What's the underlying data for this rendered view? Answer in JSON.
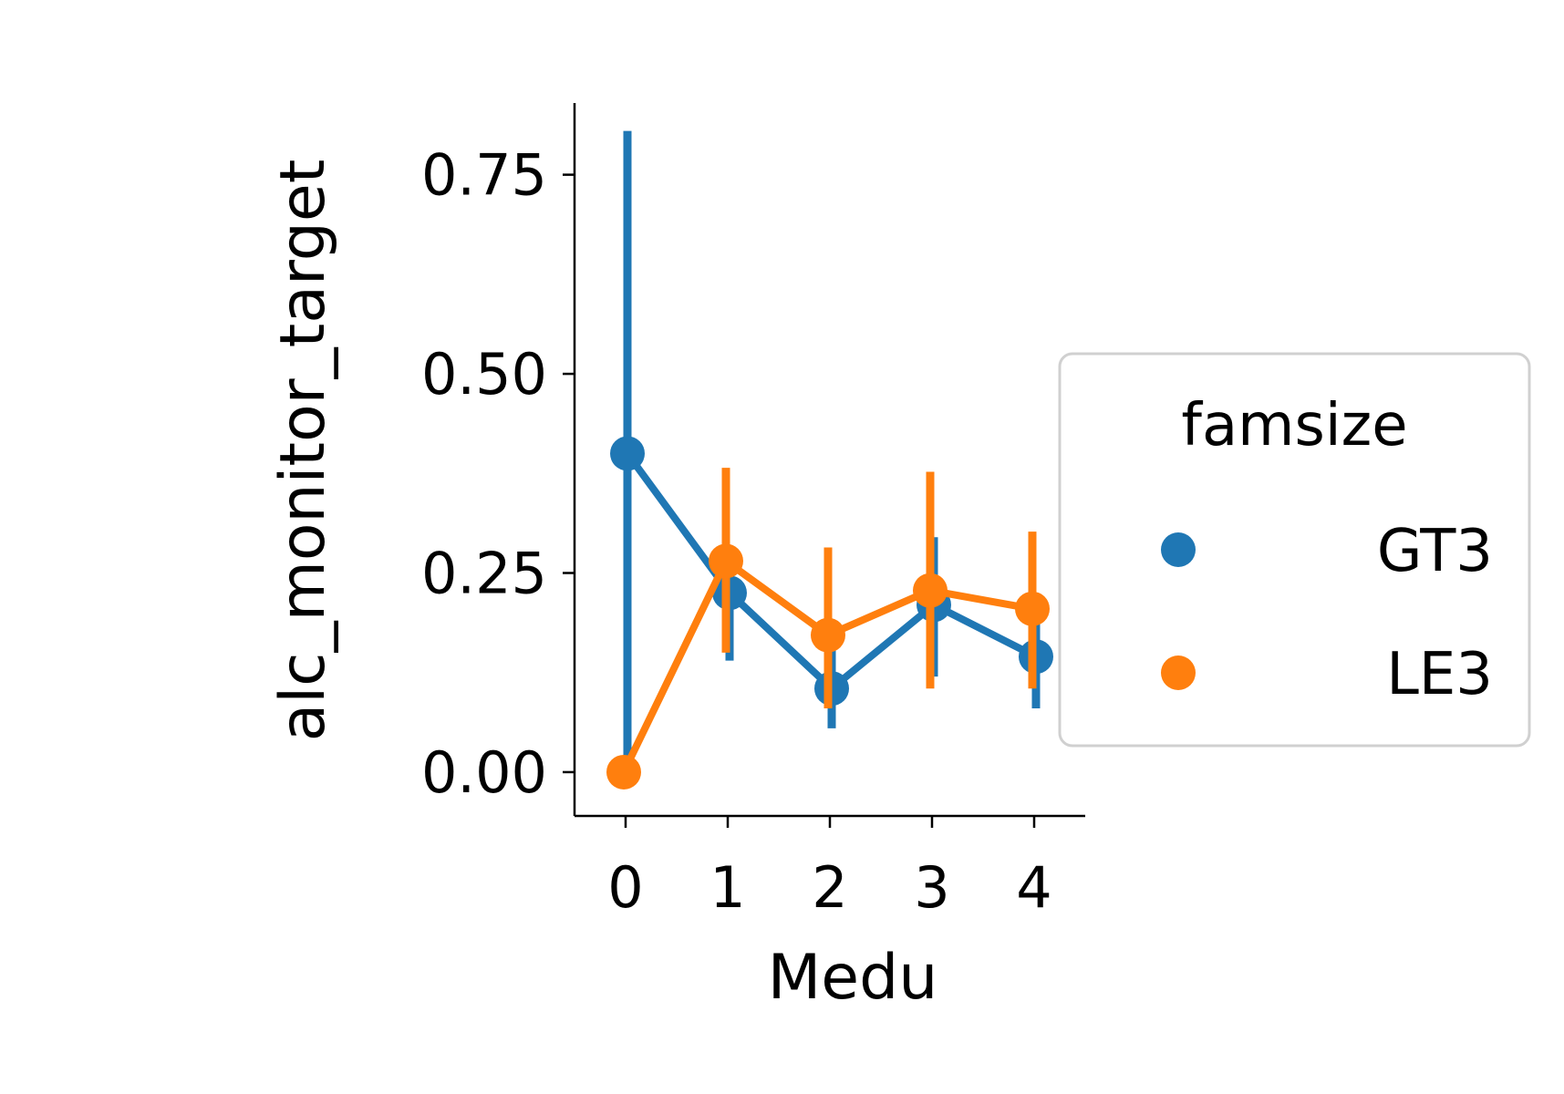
{
  "chart_data": {
    "type": "line",
    "xlabel": "Medu",
    "ylabel": "alc_monitor_target",
    "categories": [
      "0",
      "1",
      "2",
      "3",
      "4"
    ],
    "ylim": [
      -0.055,
      0.84
    ],
    "yticks": [
      0.0,
      0.25,
      0.5,
      0.75
    ],
    "ytick_labels": [
      "0.00",
      "0.25",
      "0.50",
      "0.75"
    ],
    "grid": false,
    "legend": {
      "title": "famsize",
      "placement": "right",
      "entries": [
        "GT3",
        "LE3"
      ]
    },
    "series": [
      {
        "name": "GT3",
        "color": "#1f77b4",
        "values": [
          0.4,
          0.225,
          0.105,
          0.21,
          0.145
        ],
        "ci_low": [
          0.0,
          0.14,
          0.055,
          0.12,
          0.08
        ],
        "ci_high": [
          0.805,
          0.28,
          0.17,
          0.295,
          0.215
        ]
      },
      {
        "name": "LE3",
        "color": "#ff7f0e",
        "values": [
          0.0,
          0.265,
          0.172,
          0.228,
          0.205
        ],
        "ci_low": [
          0.0,
          0.15,
          0.08,
          0.105,
          0.105
        ],
        "ci_high": [
          0.0,
          0.382,
          0.282,
          0.377,
          0.302
        ]
      }
    ]
  }
}
